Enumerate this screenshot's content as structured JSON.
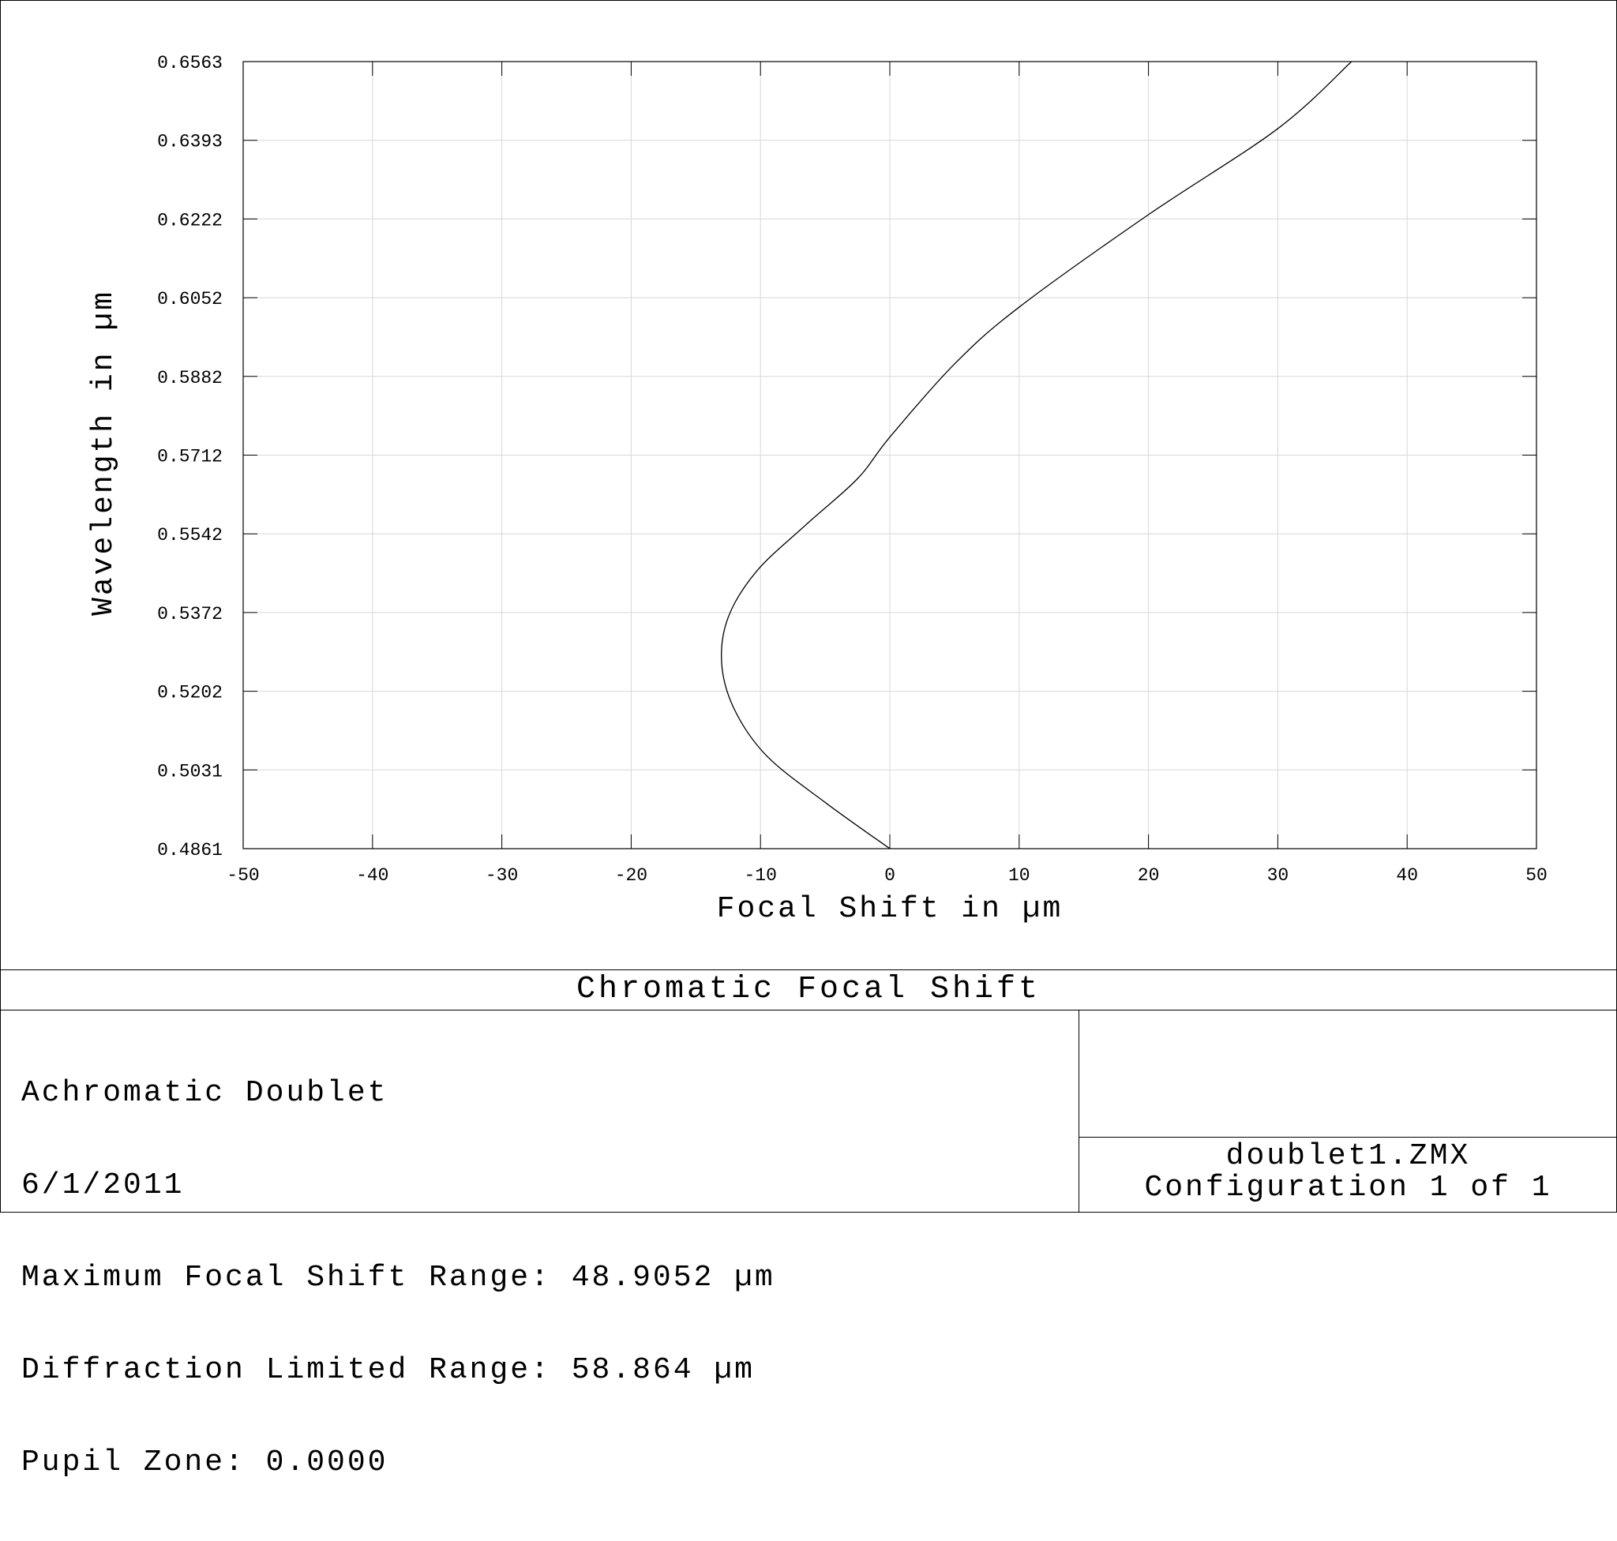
{
  "chart_data": {
    "type": "line",
    "title": "Chromatic Focal Shift",
    "xlabel": "Focal Shift in µm",
    "ylabel": "Wavelength in µm",
    "xlim": [
      -50,
      50
    ],
    "ylim": [
      0.4861,
      0.6563
    ],
    "x_ticks": [
      "-50",
      "-40",
      "-30",
      "-20",
      "-10",
      "0",
      "10",
      "20",
      "30",
      "40",
      "50"
    ],
    "y_ticks": [
      "0.4861",
      "0.5031",
      "0.5202",
      "0.5372",
      "0.5542",
      "0.5712",
      "0.5882",
      "0.6052",
      "0.6222",
      "0.6393",
      "0.6563"
    ],
    "grid": true,
    "series": [
      {
        "color": "#000000",
        "x": [
          0,
          -5,
          -9.5,
          -12.0,
          -13.0,
          -12.5,
          -10.3,
          -6.5,
          -2.5,
          0,
          5,
          10,
          20,
          30,
          35.7
        ],
        "y": [
          0.4861,
          0.4961,
          0.5061,
          0.5161,
          0.5261,
          0.5361,
          0.5461,
          0.5561,
          0.5661,
          0.5751,
          0.5909,
          0.6032,
          0.6232,
          0.6418,
          0.6563
        ]
      }
    ]
  },
  "info": {
    "lines": [
      "Achromatic Doublet",
      "6/1/2011",
      "Maximum Focal Shift Range: 48.9052 µm",
      "Diffraction Limited Range: 58.864 µm",
      "Pupil Zone: 0.0000"
    ],
    "file_name": "doublet1.ZMX",
    "configuration": "Configuration 1 of 1"
  }
}
